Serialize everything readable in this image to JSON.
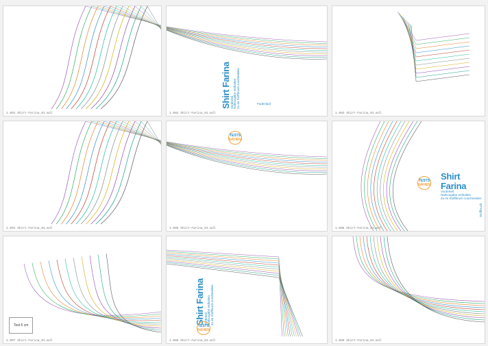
{
  "sheets": [
    {
      "footer": "1.001 Shirt-Farina_01.mdl"
    },
    {
      "footer": "1.002 Shirt-Farina_01.mdl"
    },
    {
      "footer": "1.003 Shirt-Farina_01.mdl"
    },
    {
      "footer": "1.004 Shirt-Farina_01.mdl"
    },
    {
      "footer": "1.005 Shirt-Farina_01.mdl"
    },
    {
      "footer": "1.006 Shirt-Farina_01.mdl"
    },
    {
      "footer": "1.007 Shirt-Farina_01.mdl"
    },
    {
      "footer": "1.008 Shirt-Farina_01.mdl"
    },
    {
      "footer": "1.009 Shirt-Farina_01.mdl"
    }
  ],
  "pattern": {
    "name": "Shirt Farina",
    "piece_label": "Vorderteil",
    "line2": "Nahtzugabe enthalten",
    "line3": "Zu im Stoffbruch zuschneiden",
    "fold_label": "Fadenlauf",
    "box_label": "Test 5 cm",
    "side_label": "Stoffbruch",
    "logo_top": "TESTS",
    "logo_bottom": "NÄHEN"
  },
  "colors": {
    "size_lines": [
      "#9b59b6",
      "#27ae60",
      "#e67e22",
      "#2a8fc9",
      "#c0392b",
      "#1abc9c",
      "#7f8c8d",
      "#d4ac0d",
      "#8e44ad",
      "#16a085",
      "#555555"
    ],
    "accent": "#2a8fc9",
    "logo": "#f2a33a"
  }
}
